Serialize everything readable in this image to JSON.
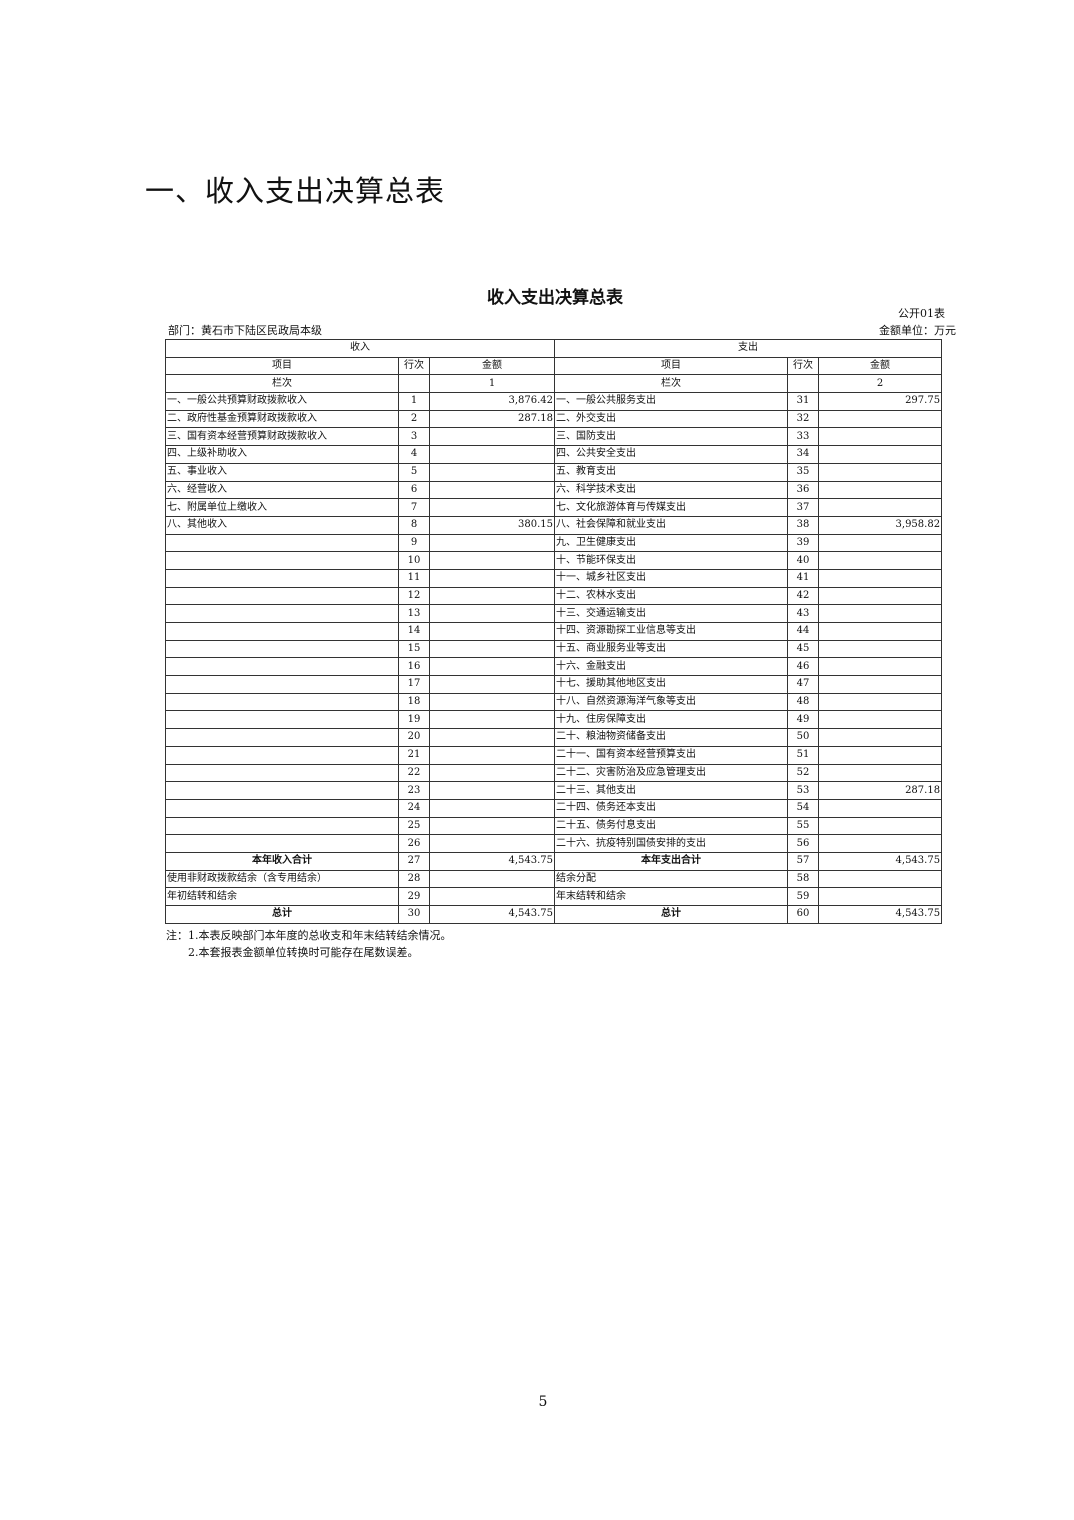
{
  "heading": "一、收入支出决算总表",
  "table_title": "收入支出决算总表",
  "form_no": "公开01表",
  "department": "部门：黄石市下陆区民政局本级",
  "unit": "金额单位：万元",
  "header": {
    "income": "收入",
    "expense": "支出",
    "item": "项目",
    "line": "行次",
    "amount": "金额",
    "column_label": "栏次",
    "col1": "1",
    "col2": "2"
  },
  "rows": [
    [
      "一、一般公共预算财政拨款收入",
      "1",
      "3,876.42",
      "一、一般公共服务支出",
      "31",
      "297.75"
    ],
    [
      "二、政府性基金预算财政拨款收入",
      "2",
      "287.18",
      "二、外交支出",
      "32",
      ""
    ],
    [
      "三、国有资本经营预算财政拨款收入",
      "3",
      "",
      "三、国防支出",
      "33",
      ""
    ],
    [
      "四、上级补助收入",
      "4",
      "",
      "四、公共安全支出",
      "34",
      ""
    ],
    [
      "五、事业收入",
      "5",
      "",
      "五、教育支出",
      "35",
      ""
    ],
    [
      "六、经营收入",
      "6",
      "",
      "六、科学技术支出",
      "36",
      ""
    ],
    [
      "七、附属单位上缴收入",
      "7",
      "",
      "七、文化旅游体育与传媒支出",
      "37",
      ""
    ],
    [
      "八、其他收入",
      "8",
      "380.15",
      "八、社会保障和就业支出",
      "38",
      "3,958.82"
    ],
    [
      "",
      "9",
      "",
      "九、卫生健康支出",
      "39",
      ""
    ],
    [
      "",
      "10",
      "",
      "十、节能环保支出",
      "40",
      ""
    ],
    [
      "",
      "11",
      "",
      "十一、城乡社区支出",
      "41",
      ""
    ],
    [
      "",
      "12",
      "",
      "十二、农林水支出",
      "42",
      ""
    ],
    [
      "",
      "13",
      "",
      "十三、交通运输支出",
      "43",
      ""
    ],
    [
      "",
      "14",
      "",
      "十四、资源勘探工业信息等支出",
      "44",
      ""
    ],
    [
      "",
      "15",
      "",
      "十五、商业服务业等支出",
      "45",
      ""
    ],
    [
      "",
      "16",
      "",
      "十六、金融支出",
      "46",
      ""
    ],
    [
      "",
      "17",
      "",
      "十七、援助其他地区支出",
      "47",
      ""
    ],
    [
      "",
      "18",
      "",
      "十八、自然资源海洋气象等支出",
      "48",
      ""
    ],
    [
      "",
      "19",
      "",
      "十九、住房保障支出",
      "49",
      ""
    ],
    [
      "",
      "20",
      "",
      "二十、粮油物资储备支出",
      "50",
      ""
    ],
    [
      "",
      "21",
      "",
      "二十一、国有资本经营预算支出",
      "51",
      ""
    ],
    [
      "",
      "22",
      "",
      "二十二、灾害防治及应急管理支出",
      "52",
      ""
    ],
    [
      "",
      "23",
      "",
      "二十三、其他支出",
      "53",
      "287.18"
    ],
    [
      "",
      "24",
      "",
      "二十四、债务还本支出",
      "54",
      ""
    ],
    [
      "",
      "25",
      "",
      "二十五、债务付息支出",
      "55",
      ""
    ],
    [
      "",
      "26",
      "",
      "二十六、抗疫特别国债安排的支出",
      "56",
      ""
    ],
    [
      "本年收入合计",
      "27",
      "4,543.75",
      "本年支出合计",
      "57",
      "4,543.75"
    ],
    [
      "使用非财政拨款结余（含专用结余）",
      "28",
      "",
      "结余分配",
      "58",
      ""
    ],
    [
      "年初结转和结余",
      "29",
      "",
      "年末结转和结余",
      "59",
      ""
    ],
    [
      "总计",
      "30",
      "4,543.75",
      "总计",
      "60",
      "4,543.75"
    ]
  ],
  "notes": [
    "注：1.本表反映部门本年度的总收支和年末结转结余情况。",
    "2.本套报表金额单位转换时可能存在尾数误差。"
  ],
  "page_number": "5"
}
